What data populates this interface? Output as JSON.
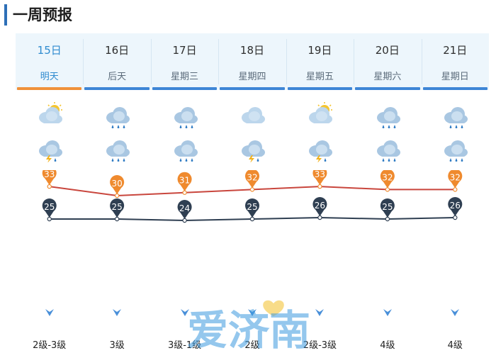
{
  "header": {
    "title": "一周预报"
  },
  "days": [
    {
      "date": "15日",
      "weekday": "明天",
      "day_icon": "sun-cloud-icon",
      "night_icon": "thunder-rain-icon",
      "high": "33",
      "low": "25",
      "wind": "2级-3级",
      "active": true
    },
    {
      "date": "16日",
      "weekday": "后天",
      "day_icon": "cloud-rain-icon",
      "night_icon": "cloud-rain-icon",
      "high": "30",
      "low": "25",
      "wind": "3级",
      "active": false
    },
    {
      "date": "17日",
      "weekday": "星期三",
      "day_icon": "cloud-rain-icon",
      "night_icon": "cloud-rain-icon",
      "high": "31",
      "low": "24",
      "wind": "3级-1级",
      "active": false
    },
    {
      "date": "18日",
      "weekday": "星期四",
      "day_icon": "cloud-icon",
      "night_icon": "thunder-rain-icon",
      "high": "32",
      "low": "25",
      "wind": "2级",
      "active": false
    },
    {
      "date": "19日",
      "weekday": "星期五",
      "day_icon": "sun-cloud-icon",
      "night_icon": "thunder-rain-icon",
      "high": "33",
      "low": "26",
      "wind": "2级-3级",
      "active": false
    },
    {
      "date": "20日",
      "weekday": "星期六",
      "day_icon": "cloud-rain-icon",
      "night_icon": "cloud-rain-icon",
      "high": "32",
      "low": "25",
      "wind": "4级",
      "active": false
    },
    {
      "date": "21日",
      "weekday": "星期日",
      "day_icon": "cloud-rain-icon",
      "night_icon": "cloud-rain-icon",
      "high": "32",
      "low": "26",
      "wind": "4级",
      "active": false
    }
  ],
  "watermark": {
    "text": "爱济南"
  },
  "colors": {
    "accent": "#2d6fb7",
    "active_tab": "#f0913a",
    "tab": "#3e86d6",
    "high_line": "#c9463d",
    "high_pin": "#ef8a2e",
    "low_line": "#2f3f52",
    "low_pin": "#2f3f52",
    "wind_arrow": "#4a90d9"
  }
}
